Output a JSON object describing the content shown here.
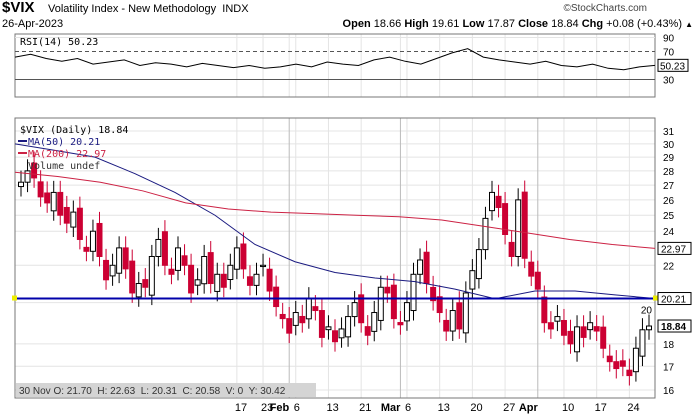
{
  "header": {
    "symbol": "$VIX",
    "name": "Volatility Index - New Methodology",
    "exchange": "INDX",
    "brand": "©StockCharts.com",
    "date": "26-Apr-2023",
    "open_label": "Open",
    "open": "18.66",
    "high_label": "High",
    "high": "19.61",
    "low_label": "Low",
    "low": "17.87",
    "close_label": "Close",
    "close": "18.84",
    "chg_label": "Chg",
    "chg": "+0.08 (+0.43%)"
  },
  "legend": {
    "rsi": "RSI(14) 50.23",
    "price": "$VIX (Daily) 18.84",
    "ma50": "MA(50) 20.21",
    "ma200": "MA(200) 22.97",
    "volume": "Volume undef"
  },
  "footer": {
    "info": "30 Nov O: 21.70  H: 22.63  L: 20.31  C: 20.58  V: 0  Y: 30.42"
  },
  "colors": {
    "up": "#000000",
    "down": "#cc0033",
    "ma50": "#1a1a80",
    "ma200": "#cc2244",
    "hline": "#0000aa",
    "rsi": "#000000"
  },
  "chart_data": {
    "type": "candlestick",
    "scale": "log",
    "ylim": [
      16,
      31
    ],
    "yticks": [
      16,
      17,
      18,
      20,
      22,
      24,
      25,
      26,
      27,
      28,
      29,
      30,
      31
    ],
    "price_labels": [
      {
        "text": "18.84",
        "value": 18.84,
        "kind": "close"
      },
      {
        "text": "20.21",
        "value": 20.21,
        "kind": "ma50"
      },
      {
        "text": "22.97",
        "value": 22.97,
        "kind": "ma200"
      }
    ],
    "hline": 20.21,
    "xticks": [
      {
        "label": "17",
        "i": 33
      },
      {
        "label": "23",
        "i": 37
      },
      {
        "label": "Feb",
        "bold": true,
        "i": 41
      },
      {
        "label": "6",
        "i": 42
      },
      {
        "label": "13",
        "i": 47
      },
      {
        "label": "21",
        "i": 52
      },
      {
        "label": "Mar",
        "bold": true,
        "i": 58
      },
      {
        "label": "6",
        "i": 59
      },
      {
        "label": "13",
        "i": 64
      },
      {
        "label": "20",
        "i": 69
      },
      {
        "label": "27",
        "i": 74
      },
      {
        "label": "Apr",
        "bold": true,
        "i": 79
      },
      {
        "label": "10",
        "i": 83
      },
      {
        "label": "17",
        "i": 88
      },
      {
        "label": "24",
        "i": 93
      }
    ],
    "closes": [
      27.2,
      28.0,
      27.5,
      26.2,
      25.8,
      26.5,
      25.0,
      24.5,
      25.2,
      23.5,
      22.8,
      24.0,
      22.5,
      21.2,
      22.0,
      23.0,
      21.8,
      20.5,
      21.0,
      20.8,
      22.5,
      23.5,
      22.0,
      21.5,
      23.0,
      22.0,
      20.5,
      21.2,
      22.5,
      21.0,
      21.5,
      20.8,
      22.0,
      23.0,
      21.8,
      20.9,
      21.5,
      22.0,
      20.6,
      19.8,
      19.2,
      18.5,
      19.5,
      19.0,
      20.2,
      19.6,
      18.3,
      18.8,
      18.1,
      18.7,
      19.3,
      20.0,
      19.0,
      18.4,
      19.5,
      20.8,
      20.5,
      19.2,
      18.9,
      20.0,
      21.5,
      22.3,
      21.0,
      20.1,
      19.5,
      18.6,
      19.6,
      18.7,
      20.5,
      21.7,
      22.9,
      24.8,
      26.5,
      25.5,
      23.8,
      22.5,
      26.0,
      22.4,
      21.4,
      20.7,
      19.0,
      18.7,
      19.3,
      18.4,
      18.0,
      18.8,
      18.3,
      19.0,
      18.6,
      17.8,
      17.2,
      16.9,
      17.0,
      16.6,
      17.8,
      18.66,
      18.84
    ],
    "ma50": [
      30.0,
      29.5,
      29.0,
      27.8,
      26.5,
      25.0,
      23.2,
      22.2,
      21.6,
      21.3,
      21.1,
      20.7,
      20.2,
      20.6,
      20.6,
      20.4,
      20.21
    ],
    "ma200": [
      27.9,
      27.6,
      27.2,
      26.6,
      25.8,
      25.4,
      25.2,
      25.1,
      25.0,
      24.9,
      24.7,
      24.3,
      23.9,
      23.5,
      23.2,
      22.97
    ],
    "rsi_ticks": [
      90,
      70,
      30
    ],
    "rsi": [
      62,
      66,
      60,
      56,
      60,
      52,
      55,
      58,
      50,
      54,
      52,
      48,
      53,
      50,
      47,
      50,
      46,
      48,
      52,
      48,
      55,
      52,
      50,
      58,
      62,
      56,
      52,
      60,
      68,
      74,
      62,
      58,
      55,
      52,
      56,
      50,
      48,
      52,
      46,
      44,
      48,
      50.23
    ]
  }
}
